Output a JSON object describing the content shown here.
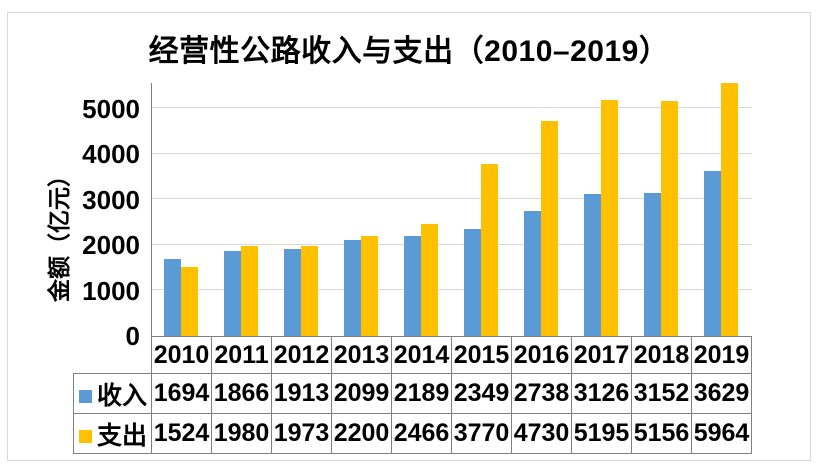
{
  "chart_data": {
    "type": "bar",
    "title": "经营性公路收入与支出（2010–2019）",
    "ylabel": "金额（亿元）",
    "categories": [
      "2010",
      "2011",
      "2012",
      "2013",
      "2014",
      "2015",
      "2016",
      "2017",
      "2018",
      "2019"
    ],
    "series": [
      {
        "name": "收入",
        "color": "#5B9BD5",
        "values": [
          1694,
          1866,
          1913,
          2099,
          2189,
          2349,
          2738,
          3126,
          3152,
          3629
        ]
      },
      {
        "name": "支出",
        "color": "#FFC000",
        "values": [
          1524,
          1980,
          1973,
          2200,
          2466,
          3770,
          4730,
          5195,
          5156,
          5964
        ]
      }
    ],
    "y_ticks": [
      0,
      1000,
      2000,
      3000,
      4000,
      5000
    ],
    "ylim": [
      0,
      5560
    ],
    "grid": "horizontal",
    "legend_position": "table-rows-left",
    "colors": {
      "grid": "#D9D9D9",
      "axis": "#808080",
      "table_border": "#808080",
      "frame_border": "#D9D9D9",
      "text": "#000000"
    }
  }
}
